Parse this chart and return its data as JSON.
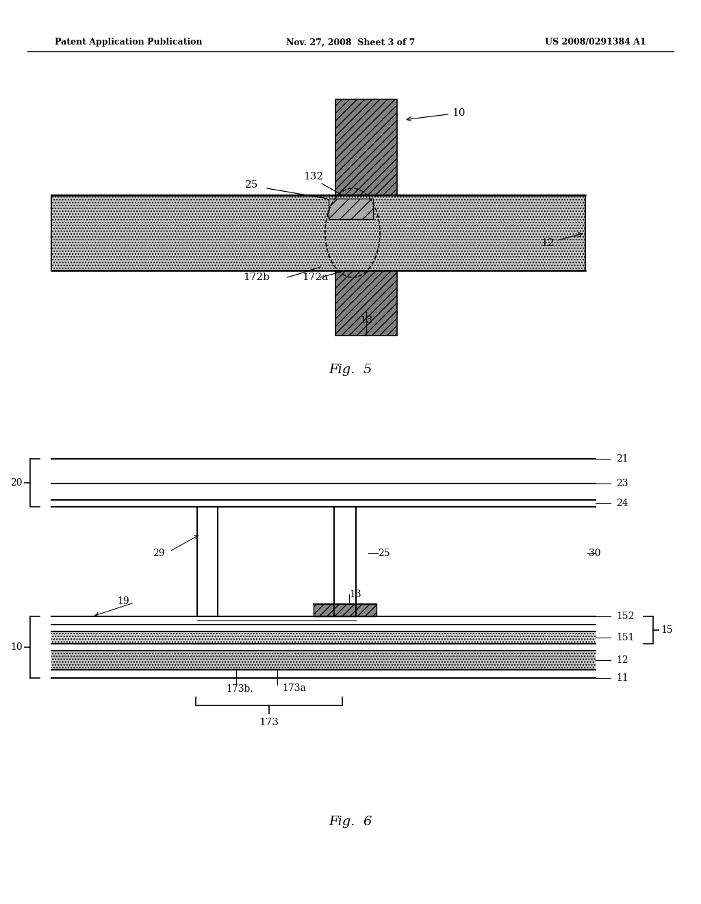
{
  "bg_color": "#ffffff",
  "header_left": "Patent Application Publication",
  "header_mid": "Nov. 27, 2008  Sheet 3 of 7",
  "header_right": "US 2008/0291384 A1",
  "fig5_label": "Fig.  5",
  "fig6_label": "Fig.  6"
}
